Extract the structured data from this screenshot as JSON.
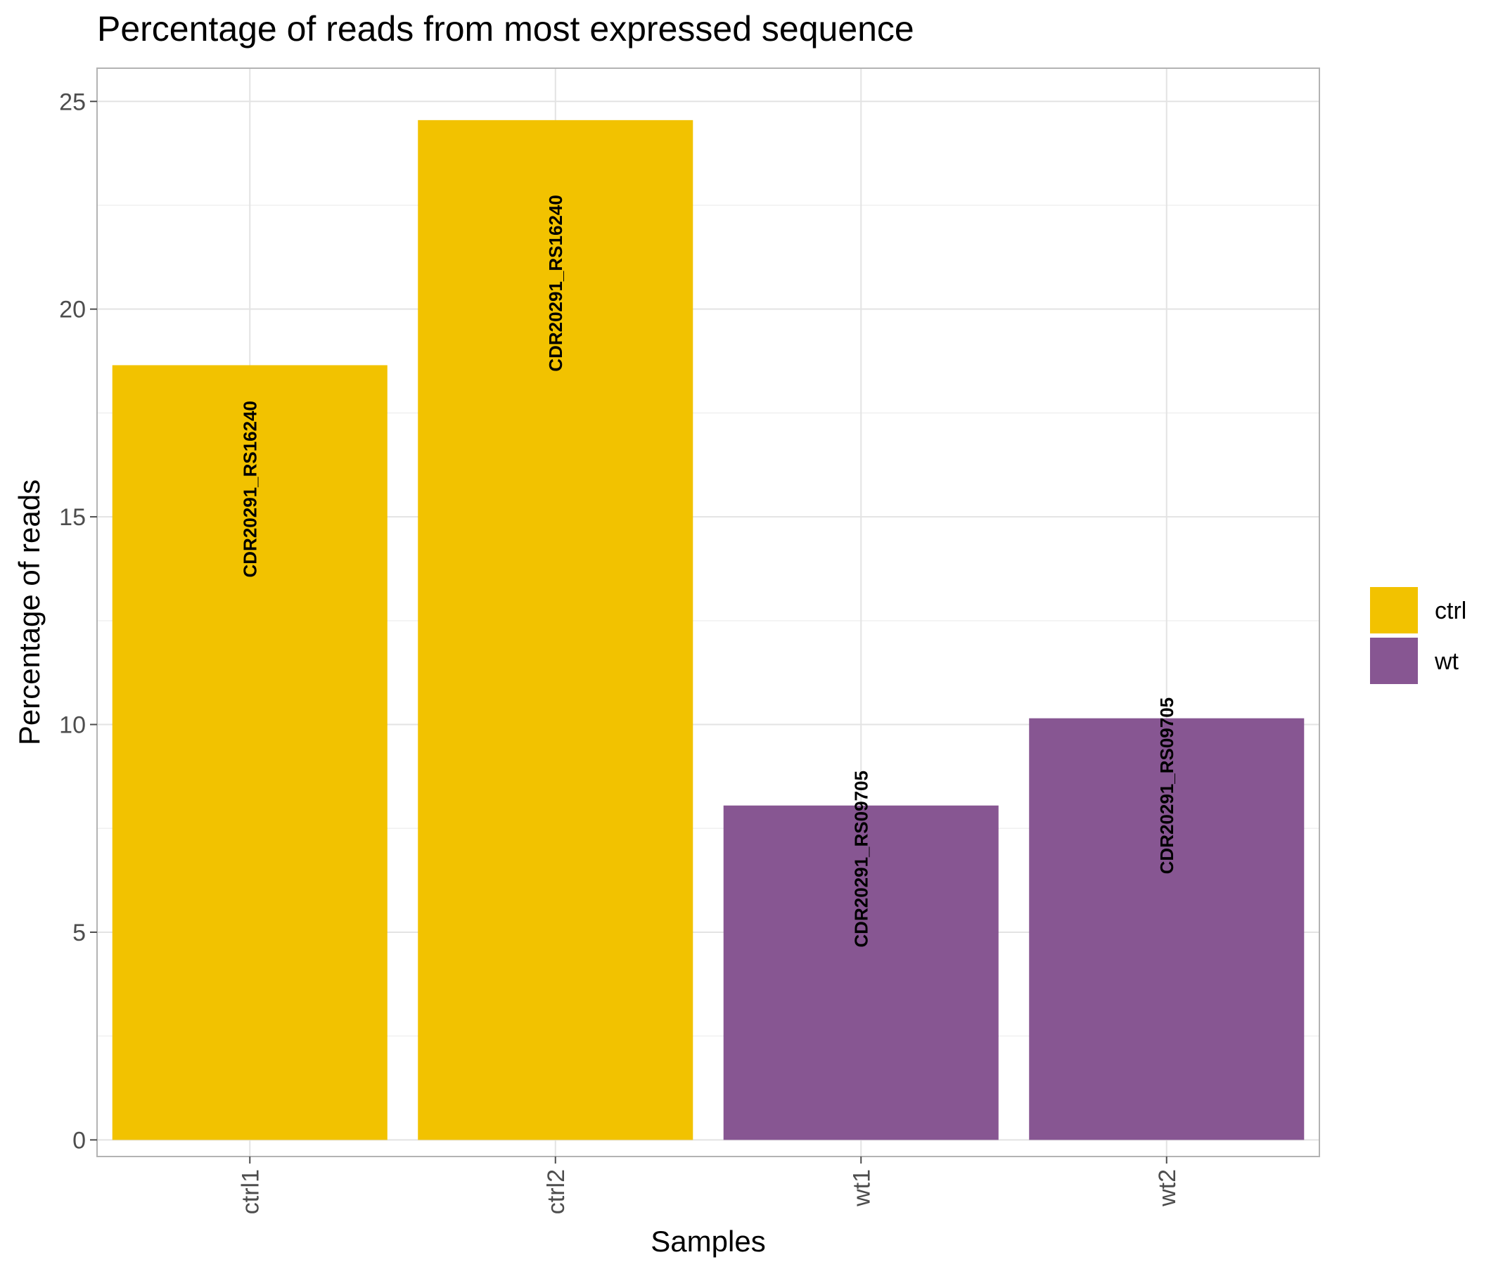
{
  "chart_data": {
    "type": "bar",
    "title": "Percentage of reads from most expressed sequence",
    "xlabel": "Samples",
    "ylabel": "Percentage of reads",
    "categories": [
      "ctrl1",
      "ctrl2",
      "wt1",
      "wt2"
    ],
    "values": [
      18.65,
      24.55,
      8.05,
      10.15
    ],
    "groups": [
      "ctrl",
      "ctrl",
      "wt",
      "wt"
    ],
    "bar_labels": [
      "CDR20291_RS16240",
      "CDR20291_RS16240",
      "CDR20291_RS09705",
      "CDR20291_RS09705"
    ],
    "ylim": [
      -0.4,
      25.8
    ],
    "yticks": [
      0,
      5,
      10,
      15,
      20,
      25
    ],
    "grid": true,
    "legend": {
      "position": "right",
      "entries": [
        {
          "name": "ctrl",
          "color": "#F2C200"
        },
        {
          "name": "wt",
          "color": "#875692"
        }
      ]
    }
  }
}
